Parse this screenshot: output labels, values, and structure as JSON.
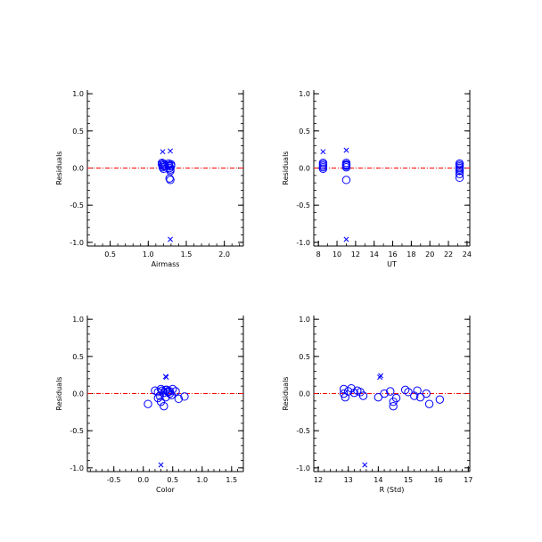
{
  "colors": {
    "marker": "#0000ff",
    "zero_line": "#ff0000",
    "axis": "#000000",
    "background": "#ffffff"
  },
  "chart_data": [
    {
      "type": "scatter",
      "xlabel": "Airmass",
      "ylabel": "Residuals",
      "xlim": [
        0.2,
        2.25
      ],
      "ylim": [
        -1.05,
        1.05
      ],
      "xticks": [
        0.5,
        1.0,
        1.5,
        2.0
      ],
      "xtick_labels": [
        "0.5",
        "1.0",
        "1.5",
        "2.0"
      ],
      "xminor": 0.1,
      "yticks": [
        -1.0,
        -0.5,
        0.0,
        0.5,
        1.0
      ],
      "ytick_labels": [
        "-1.0",
        "-0.5",
        "0.0",
        "0.5",
        "1.0"
      ],
      "yminor": 0.1,
      "reference_line_y": 0.0,
      "series": [
        {
          "marker": "circle",
          "x": [
            1.18,
            1.18,
            1.19,
            1.19,
            1.2,
            1.2,
            1.21,
            1.22,
            1.27,
            1.27,
            1.28,
            1.28,
            1.29,
            1.29,
            1.3,
            1.3,
            1.28,
            1.29
          ],
          "y": [
            0.07,
            0.05,
            0.03,
            0.01,
            -0.01,
            0.06,
            0.04,
            0.02,
            0.06,
            0.04,
            0.02,
            0.0,
            -0.02,
            -0.04,
            0.05,
            0.03,
            -0.14,
            -0.16
          ]
        },
        {
          "marker": "cross",
          "x": [
            1.19,
            1.29,
            1.29
          ],
          "y": [
            0.22,
            0.23,
            -0.96
          ]
        }
      ]
    },
    {
      "type": "scatter",
      "xlabel": "UT",
      "ylabel": "Residuals",
      "xlim": [
        7.5,
        24.3
      ],
      "ylim": [
        -1.05,
        1.05
      ],
      "xticks": [
        8,
        10,
        12,
        14,
        16,
        18,
        20,
        22,
        24
      ],
      "xtick_labels": [
        "8",
        "10",
        "12",
        "14",
        "16",
        "18",
        "20",
        "22",
        "24"
      ],
      "xminor": 1,
      "yticks": [
        -1.0,
        -0.5,
        0.0,
        0.5,
        1.0
      ],
      "ytick_labels": [
        "-1.0",
        "-0.5",
        "0.0",
        "0.5",
        "1.0"
      ],
      "yminor": 0.1,
      "reference_line_y": 0.0,
      "series": [
        {
          "marker": "circle",
          "x": [
            8.5,
            8.5,
            8.5,
            8.5,
            8.5,
            11.0,
            11.0,
            11.0,
            11.0,
            11.0,
            11.0,
            23.2,
            23.2,
            23.2,
            23.2,
            23.2,
            23.2,
            23.2,
            23.2
          ],
          "y": [
            0.07,
            0.05,
            0.03,
            0.01,
            -0.01,
            0.07,
            0.05,
            0.03,
            0.01,
            0.04,
            -0.16,
            0.06,
            0.04,
            0.02,
            0.0,
            -0.02,
            -0.04,
            -0.08,
            -0.13
          ]
        },
        {
          "marker": "cross",
          "x": [
            8.5,
            11.0,
            11.0
          ],
          "y": [
            0.22,
            0.24,
            -0.96
          ]
        }
      ]
    },
    {
      "type": "scatter",
      "xlabel": "Color",
      "ylabel": "Residuals",
      "xlim": [
        -0.95,
        1.7
      ],
      "ylim": [
        -1.05,
        1.05
      ],
      "xticks": [
        -0.5,
        0.0,
        0.5,
        1.0,
        1.5
      ],
      "xtick_labels": [
        "-0.5",
        "0.0",
        "0.5",
        "1.0",
        "1.5"
      ],
      "xminor": 0.1,
      "yticks": [
        -1.0,
        -0.5,
        0.0,
        0.5,
        1.0
      ],
      "ytick_labels": [
        "-1.0",
        "-0.5",
        "0.0",
        "0.5",
        "1.0"
      ],
      "yminor": 0.1,
      "reference_line_y": 0.0,
      "series": [
        {
          "marker": "circle",
          "x": [
            0.08,
            0.2,
            0.25,
            0.28,
            0.3,
            0.32,
            0.35,
            0.38,
            0.4,
            0.42,
            0.45,
            0.48,
            0.5,
            0.55,
            0.6,
            0.7,
            0.3,
            0.35,
            0.38,
            0.42,
            0.25,
            0.45
          ],
          "y": [
            -0.14,
            0.04,
            0.02,
            -0.03,
            0.06,
            0.04,
            0.01,
            -0.05,
            0.05,
            0.03,
            0.0,
            -0.02,
            0.06,
            0.03,
            -0.07,
            -0.04,
            -0.11,
            -0.17,
            0.05,
            0.02,
            -0.06,
            0.03
          ]
        },
        {
          "marker": "cross",
          "x": [
            0.38,
            0.39,
            0.3
          ],
          "y": [
            0.23,
            0.22,
            -0.96
          ]
        }
      ]
    },
    {
      "type": "scatter",
      "xlabel": "R (Std)",
      "ylabel": "Residuals",
      "xlim": [
        11.85,
        17.05
      ],
      "ylim": [
        -1.05,
        1.05
      ],
      "xticks": [
        12,
        13,
        14,
        15,
        16,
        17
      ],
      "xtick_labels": [
        "12",
        "13",
        "14",
        "15",
        "16",
        "17"
      ],
      "xminor": 0.2,
      "yticks": [
        -1.0,
        -0.5,
        0.0,
        0.5,
        1.0
      ],
      "ytick_labels": [
        "-1.0",
        "-0.5",
        "0.0",
        "0.5",
        "1.0"
      ],
      "yminor": 0.1,
      "reference_line_y": 0.0,
      "series": [
        {
          "marker": "circle",
          "x": [
            12.85,
            12.9,
            13.0,
            13.1,
            13.3,
            13.4,
            13.5,
            14.0,
            14.2,
            14.4,
            14.5,
            14.5,
            14.6,
            14.9,
            15.0,
            15.2,
            15.3,
            15.4,
            15.6,
            15.7,
            16.05,
            12.85,
            13.2
          ],
          "y": [
            0.06,
            -0.05,
            0.03,
            0.07,
            0.04,
            0.02,
            -0.03,
            -0.05,
            0.0,
            0.03,
            -0.11,
            -0.17,
            -0.06,
            0.05,
            0.02,
            -0.03,
            0.04,
            -0.05,
            0.0,
            -0.14,
            -0.08,
            0.0,
            0.01
          ]
        },
        {
          "marker": "cross",
          "x": [
            14.05,
            14.08,
            13.55
          ],
          "y": [
            0.22,
            0.24,
            -0.96
          ]
        }
      ]
    }
  ]
}
